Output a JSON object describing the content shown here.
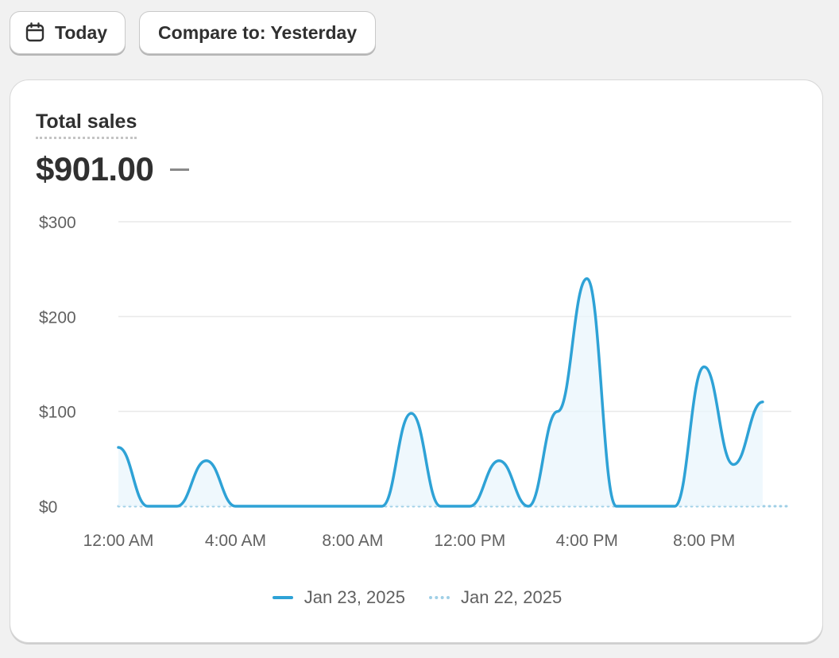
{
  "toolbar": {
    "today_label": "Today",
    "compare_label": "Compare to: Yesterday"
  },
  "metric": {
    "title": "Total sales",
    "value": "$901.00",
    "change": "—"
  },
  "colors": {
    "current_series": "#2ea2d6",
    "previous_series": "#9fcfe6",
    "area_fill": "#e8f5fc",
    "gridline": "#e9e9e9"
  },
  "chart_data": {
    "type": "line",
    "title": "",
    "xlabel": "",
    "ylabel": "",
    "ylim": [
      0,
      300
    ],
    "xlim": [
      0,
      24
    ],
    "x_unit": "hour of day",
    "yticks": [
      0,
      100,
      200,
      300
    ],
    "ytick_labels": [
      "$0",
      "$100",
      "$200",
      "$300"
    ],
    "xticks": [
      0,
      4,
      8,
      12,
      16,
      20
    ],
    "xtick_labels": [
      "12:00 AM",
      "4:00 AM",
      "8:00 AM",
      "12:00 PM",
      "4:00 PM",
      "8:00 PM"
    ],
    "grid": true,
    "legend_position": "bottom",
    "series": [
      {
        "name": "Jan 23, 2025",
        "style": "solid",
        "x": [
          0,
          1,
          2,
          3,
          4,
          5,
          6,
          7,
          8,
          9,
          10,
          11,
          12,
          13,
          14,
          15,
          16,
          17,
          18,
          19,
          20,
          21,
          22
        ],
        "values": [
          62,
          0,
          0,
          48,
          0,
          0,
          0,
          0,
          0,
          0,
          98,
          0,
          0,
          48,
          0,
          100,
          240,
          0,
          0,
          0,
          147,
          44,
          110
        ]
      },
      {
        "name": "Jan 22, 2025",
        "style": "dotted",
        "x": [
          0,
          1,
          2,
          3,
          4,
          5,
          6,
          7,
          8,
          9,
          10,
          11,
          12,
          13,
          14,
          15,
          16,
          17,
          18,
          19,
          20,
          21,
          22,
          23
        ],
        "values": [
          0,
          0,
          0,
          0,
          0,
          0,
          0,
          0,
          0,
          0,
          0,
          0,
          0,
          0,
          0,
          0,
          0,
          0,
          0,
          0,
          0,
          0,
          0,
          0
        ]
      }
    ]
  }
}
